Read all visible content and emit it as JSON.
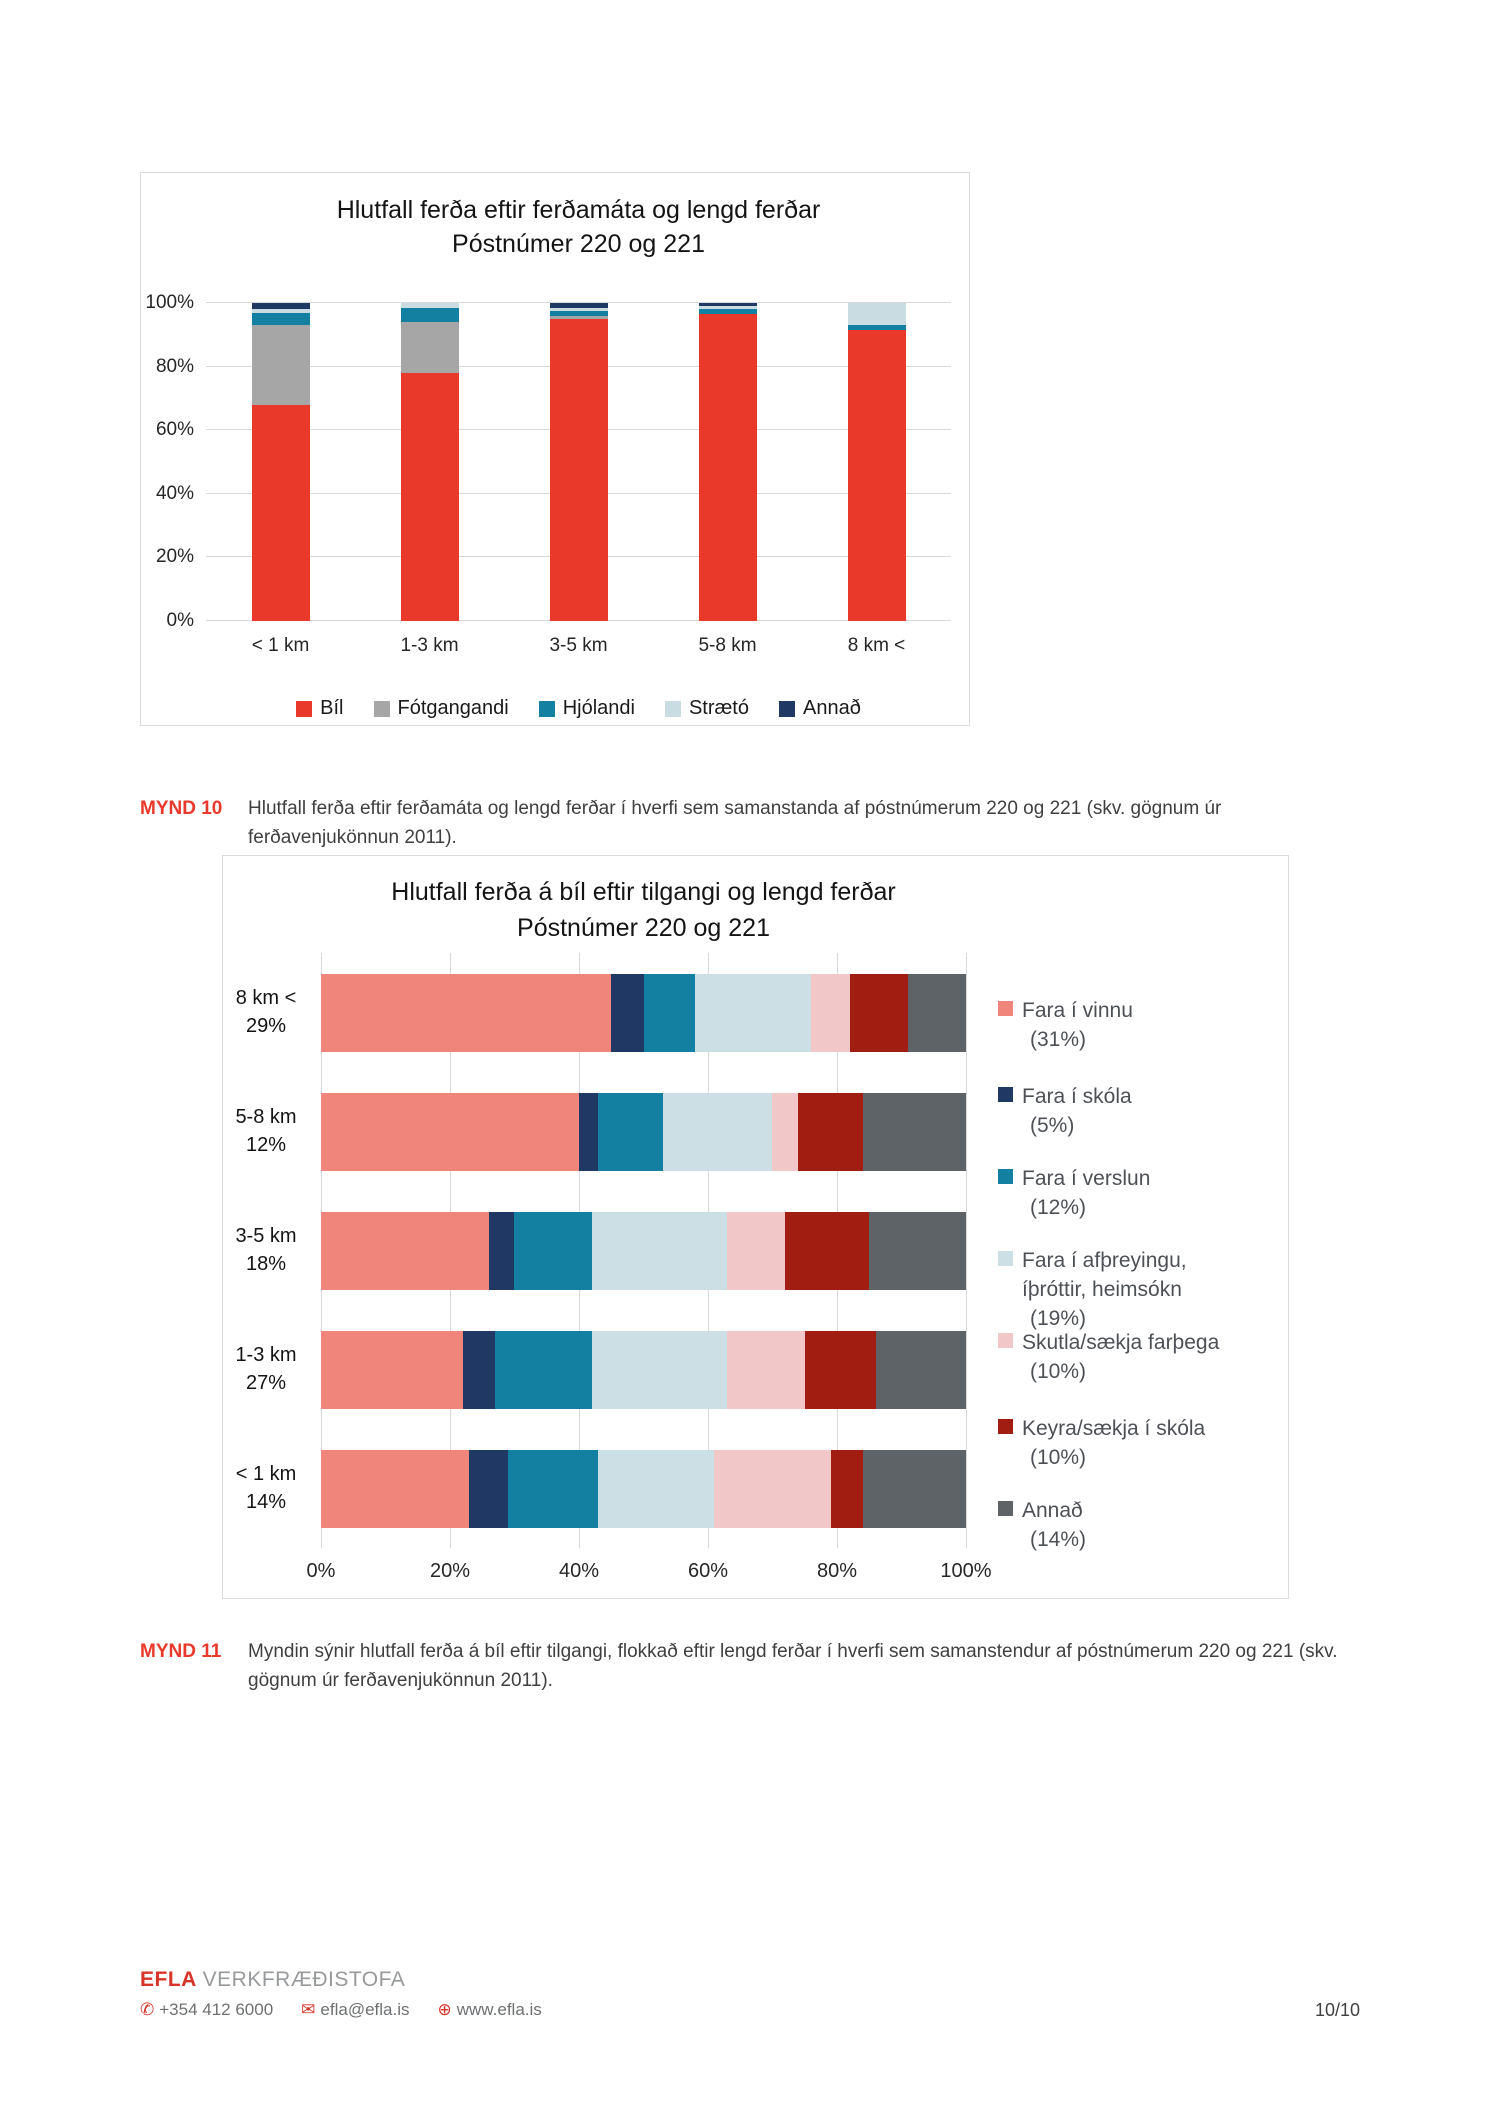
{
  "chart_data": [
    {
      "type": "bar",
      "stacked": true,
      "orientation": "vertical",
      "title": "Hlutfall ferða eftir ferðamáta og lengd ferðar",
      "subtitle": "Póstnúmer 220 og 221",
      "categories": [
        "< 1 km",
        "1-3 km",
        "3-5 km",
        "5-8 km",
        "8 km <"
      ],
      "series": [
        {
          "name": "Bíl",
          "color": "#e8392b",
          "values": [
            68,
            78,
            95,
            96.5,
            91.5
          ]
        },
        {
          "name": "Fótgangandi",
          "color": "#a6a6a6",
          "values": [
            25,
            16,
            1,
            0,
            0
          ]
        },
        {
          "name": "Hjólandi",
          "color": "#1380a1",
          "values": [
            4,
            4.5,
            1.5,
            1.5,
            1.5
          ]
        },
        {
          "name": "Strætó",
          "color": "#c8dce1",
          "values": [
            1,
            1.5,
            1,
            1,
            7
          ]
        },
        {
          "name": "Annað",
          "color": "#1f3864",
          "values": [
            2,
            0,
            1.5,
            1,
            0
          ]
        }
      ],
      "ylim": [
        0,
        100
      ],
      "y_ticks": [
        "0%",
        "20%",
        "40%",
        "60%",
        "80%",
        "100%"
      ],
      "grid": "horizontal",
      "legend_position": "bottom"
    },
    {
      "type": "bar",
      "stacked": true,
      "orientation": "horizontal",
      "title": "Hlutfall ferða á bíl eftir tilgangi og lengd ferðar",
      "subtitle": "Póstnúmer 220 og 221",
      "categories": [
        "8 km <",
        "5-8 km",
        "3-5 km",
        "1-3 km",
        "< 1 km"
      ],
      "category_shares": [
        "29%",
        "12%",
        "18%",
        "27%",
        "14%"
      ],
      "series": [
        {
          "name": "Fara í vinnu",
          "pct_label": "(31%)",
          "color": "#f0857b",
          "values": [
            45,
            40,
            26,
            22,
            23
          ]
        },
        {
          "name": "Fara í skóla",
          "pct_label": "(5%)",
          "color": "#1f3864",
          "values": [
            5,
            3,
            4,
            5,
            6
          ]
        },
        {
          "name": "Fara í verslun",
          "pct_label": "(12%)",
          "color": "#1380a1",
          "values": [
            8,
            10,
            12,
            15,
            14
          ]
        },
        {
          "name": "Fara í afþreyingu, íþróttir, heimsókn",
          "pct_label": "(19%)",
          "color": "#ccdfe5",
          "values": [
            18,
            17,
            21,
            21,
            18
          ]
        },
        {
          "name": "Skutla/sækja farþega",
          "pct_label": "(10%)",
          "color": "#f2c7c7",
          "values": [
            6,
            4,
            9,
            12,
            18
          ]
        },
        {
          "name": "Keyra/sækja í skóla",
          "pct_label": "(10%)",
          "color": "#a21d11",
          "values": [
            9,
            10,
            13,
            11,
            5
          ]
        },
        {
          "name": "Annað",
          "pct_label": "(14%)",
          "color": "#5e6368",
          "values": [
            9,
            16,
            15,
            14,
            16
          ]
        }
      ],
      "xlim": [
        0,
        100
      ],
      "x_ticks": [
        "0%",
        "20%",
        "40%",
        "60%",
        "80%",
        "100%"
      ],
      "grid": "vertical",
      "legend_position": "right"
    }
  ],
  "captions": {
    "c10_label": "MYND 10",
    "c10_text": "Hlutfall ferða eftir ferðamáta og lengd ferðar í hverfi sem samanstanda af póstnúmerum 220 og 221 (skv. gögnum úr ferðavenjukönnun 2011).",
    "c11_label": "MYND 11",
    "c11_text": "Myndin sýnir hlutfall ferða á bíl eftir tilgangi, flokkað eftir lengd ferðar í hverfi sem samanstendur af póstnúmerum 220 og 221 (skv. gögnum úr ferðavenjukönnun 2011)."
  },
  "footer": {
    "brand": "EFLA",
    "brand_suffix": "VERKFRÆÐISTOFA",
    "phone": "+354 412 6000",
    "email": "efla@efla.is",
    "website": "www.efla.is",
    "page_number": "10/10"
  }
}
